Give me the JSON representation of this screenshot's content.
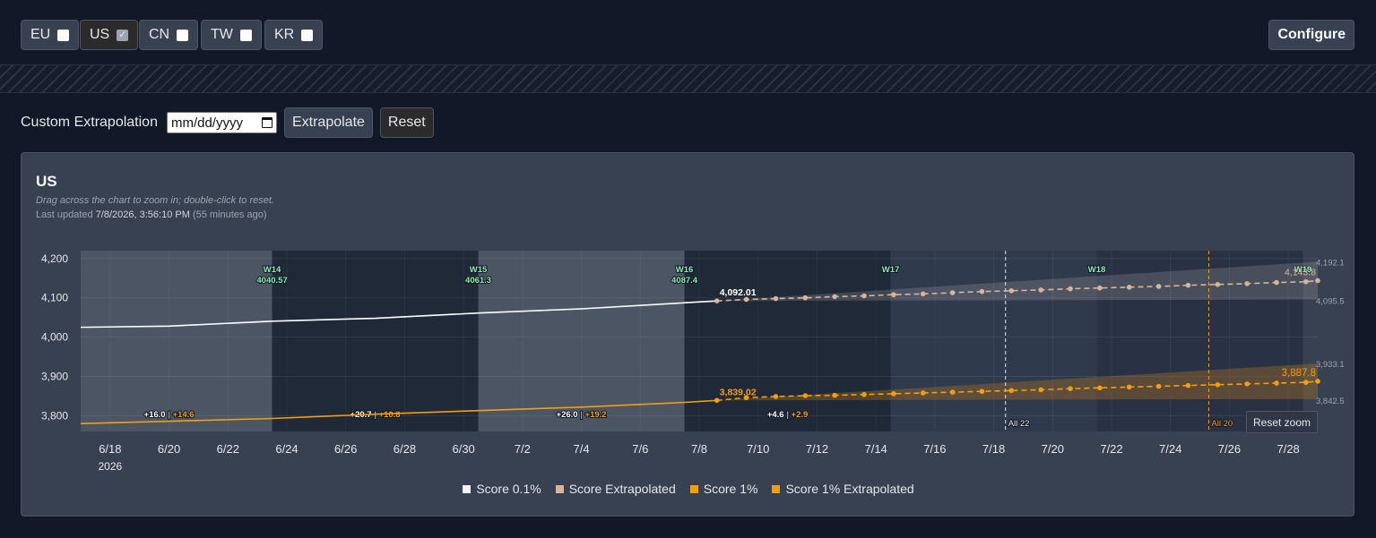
{
  "regions": [
    {
      "label": "EU",
      "checked": false
    },
    {
      "label": "US",
      "checked": true
    },
    {
      "label": "CN",
      "checked": false
    },
    {
      "label": "TW",
      "checked": false
    },
    {
      "label": "KR",
      "checked": false
    }
  ],
  "configure_label": "Configure",
  "extrapolation": {
    "label": "Custom Extrapolation",
    "date_placeholder": "mm/dd/yyyy",
    "extrapolate_label": "Extrapolate",
    "reset_label": "Reset"
  },
  "panel": {
    "title": "US",
    "hint": "Drag across the chart to zoom in; double-click to reset.",
    "updated_prefix": "Last updated",
    "updated_time": "7/8/2026, 3:56:10 PM",
    "updated_ago": "(55 minutes ago)",
    "reset_zoom_label": "Reset zoom"
  },
  "colors": {
    "score01": "#ffffff",
    "score01_extrap": "#d8b49b",
    "score1": "#f59e0b",
    "score1_extrap": "#f59e0b",
    "week_light": "#4b5563",
    "week_dark": "#1f2937",
    "future_band": "#2f3a4c",
    "week_label": "#86efac"
  },
  "chart_data": {
    "type": "line",
    "x_type": "date",
    "x_range": [
      "2026-06-17",
      "2026-07-29"
    ],
    "ylim": [
      3760,
      4220
    ],
    "y_ticks": [
      3800,
      3900,
      4000,
      4100,
      4200
    ],
    "y_tick_labels": [
      "3,800",
      "3,900",
      "4,000",
      "4,100",
      "4,200"
    ],
    "x_ticks": [
      "2026-06-18",
      "2026-06-20",
      "2026-06-22",
      "2026-06-24",
      "2026-06-26",
      "2026-06-28",
      "2026-06-30",
      "2026-07-02",
      "2026-07-04",
      "2026-07-06",
      "2026-07-08",
      "2026-07-10",
      "2026-07-12",
      "2026-07-14",
      "2026-07-16",
      "2026-07-18",
      "2026-07-20",
      "2026-07-22",
      "2026-07-24",
      "2026-07-26",
      "2026-07-28"
    ],
    "x_tick_labels": [
      "6/18",
      "6/20",
      "6/22",
      "6/24",
      "6/26",
      "6/28",
      "6/30",
      "7/2",
      "7/4",
      "7/6",
      "7/8",
      "7/10",
      "7/12",
      "7/14",
      "7/16",
      "7/18",
      "7/20",
      "7/22",
      "7/24",
      "7/26",
      "7/28"
    ],
    "x_year_label": "2026",
    "grid": true,
    "weeks": [
      {
        "label": "W14",
        "value": "4040.57",
        "start": "2026-06-17",
        "end": "2026-06-23.5",
        "shade": "light"
      },
      {
        "label": "W15",
        "value": "4061.3",
        "start": "2026-06-23.5",
        "end": "2026-06-30.5",
        "shade": "dark"
      },
      {
        "label": "W16",
        "value": "4087.4",
        "start": "2026-06-30.5",
        "end": "2026-07-07.5",
        "shade": "light"
      },
      {
        "label": "W17",
        "value": "",
        "start": "2026-07-07.5",
        "end": "2026-07-14.5",
        "shade": "dark"
      },
      {
        "label": "W18",
        "value": "",
        "start": "2026-07-14.5",
        "end": "2026-07-21.5",
        "shade": "future"
      },
      {
        "label": "W19",
        "value": "",
        "start": "2026-07-21.5",
        "end": "2026-07-28.5",
        "shade": "future_dark"
      }
    ],
    "week_changes": [
      {
        "a": "+16.0",
        "b": "+14.6",
        "x": "2026-06-20"
      },
      {
        "a": "+20.7",
        "b": "+10.8",
        "x": "2026-06-27"
      },
      {
        "a": "+26.0",
        "b": "+19.2",
        "x": "2026-07-04"
      },
      {
        "a": "+4.6",
        "b": "+2.9",
        "x": "2026-07-11"
      }
    ],
    "markers": [
      {
        "label": "All 22",
        "x": "2026-07-18.4",
        "color": "#e5e7eb"
      },
      {
        "label": "All 20",
        "x": "2026-07-25.3",
        "color": "#f59e0b"
      }
    ],
    "series": [
      {
        "name": "Score 0.1%",
        "style": "solid",
        "points": [
          [
            "2026-06-17",
            4025
          ],
          [
            "2026-06-20",
            4028
          ],
          [
            "2026-06-23.5",
            4040.57
          ],
          [
            "2026-06-27",
            4048
          ],
          [
            "2026-06-30.5",
            4061.3
          ],
          [
            "2026-07-04",
            4072
          ],
          [
            "2026-07-07.5",
            4087.4
          ],
          [
            "2026-07-08.6",
            4092.01
          ]
        ],
        "end_label": "4,092.01"
      },
      {
        "name": "Score Extrapolated",
        "style": "dashed",
        "points": [
          [
            "2026-07-08.6",
            4092.01
          ],
          [
            "2026-07-09.6",
            4096
          ],
          [
            "2026-07-10.6",
            4098
          ],
          [
            "2026-07-11.6",
            4100
          ],
          [
            "2026-07-12.6",
            4103
          ],
          [
            "2026-07-13.6",
            4105
          ],
          [
            "2026-07-14.6",
            4108
          ],
          [
            "2026-07-15.6",
            4110
          ],
          [
            "2026-07-16.6",
            4113
          ],
          [
            "2026-07-17.6",
            4116
          ],
          [
            "2026-07-18.6",
            4118
          ],
          [
            "2026-07-19.6",
            4120
          ],
          [
            "2026-07-20.6",
            4123
          ],
          [
            "2026-07-21.6",
            4125
          ],
          [
            "2026-07-22.6",
            4127
          ],
          [
            "2026-07-23.6",
            4129
          ],
          [
            "2026-07-24.6",
            4132
          ],
          [
            "2026-07-25.6",
            4134
          ],
          [
            "2026-07-26.6",
            4136
          ],
          [
            "2026-07-27.6",
            4139
          ],
          [
            "2026-07-28.6",
            4141
          ],
          [
            "2026-07-29",
            4143.8
          ]
        ],
        "band_upper": [
          [
            "2026-07-08.6",
            4092.01
          ],
          [
            "2026-07-29",
            4192.1
          ]
        ],
        "band_lower": [
          [
            "2026-07-08.6",
            4092.01
          ],
          [
            "2026-07-29",
            4095.5
          ]
        ],
        "end_label": "4,143.8",
        "upper_label": "4,192.1",
        "lower_label": "4,095.5"
      },
      {
        "name": "Score 1%",
        "style": "solid",
        "points": [
          [
            "2026-06-17",
            3780
          ],
          [
            "2026-06-20",
            3786
          ],
          [
            "2026-06-23.5",
            3793
          ],
          [
            "2026-06-27",
            3804
          ],
          [
            "2026-06-30.5",
            3813
          ],
          [
            "2026-07-04",
            3822
          ],
          [
            "2026-07-07.5",
            3834
          ],
          [
            "2026-07-08.6",
            3839.02
          ]
        ],
        "end_label": "3,839.02"
      },
      {
        "name": "Score 1% Extrapolated",
        "style": "dashed",
        "points": [
          [
            "2026-07-08.6",
            3839.02
          ],
          [
            "2026-07-09.6",
            3846
          ],
          [
            "2026-07-10.6",
            3849
          ],
          [
            "2026-07-11.6",
            3851
          ],
          [
            "2026-07-12.6",
            3852
          ],
          [
            "2026-07-13.6",
            3854
          ],
          [
            "2026-07-14.6",
            3856
          ],
          [
            "2026-07-15.6",
            3858
          ],
          [
            "2026-07-16.6",
            3860
          ],
          [
            "2026-07-17.6",
            3862
          ],
          [
            "2026-07-18.6",
            3864
          ],
          [
            "2026-07-19.6",
            3866
          ],
          [
            "2026-07-20.6",
            3869
          ],
          [
            "2026-07-21.6",
            3871
          ],
          [
            "2026-07-22.6",
            3873
          ],
          [
            "2026-07-23.6",
            3875
          ],
          [
            "2026-07-24.6",
            3877
          ],
          [
            "2026-07-25.6",
            3879
          ],
          [
            "2026-07-26.6",
            3881
          ],
          [
            "2026-07-27.6",
            3883
          ],
          [
            "2026-07-28.6",
            3885
          ],
          [
            "2026-07-29",
            3887.8
          ]
        ],
        "band_upper": [
          [
            "2026-07-08.6",
            3839.02
          ],
          [
            "2026-07-29",
            3933.1
          ]
        ],
        "band_lower": [
          [
            "2026-07-08.6",
            3839.02
          ],
          [
            "2026-07-29",
            3842.5
          ]
        ],
        "end_label": "3,887.8",
        "upper_label": "3,933.1",
        "lower_label": "3,842.5"
      }
    ]
  },
  "legend": [
    {
      "label": "Score 0.1%",
      "color": "#f3f4f6"
    },
    {
      "label": "Score Extrapolated",
      "color": "#d8b49b"
    },
    {
      "label": "Score 1%",
      "color": "#f59e0b"
    },
    {
      "label": "Score 1% Extrapolated",
      "color": "#f59e0b"
    }
  ]
}
